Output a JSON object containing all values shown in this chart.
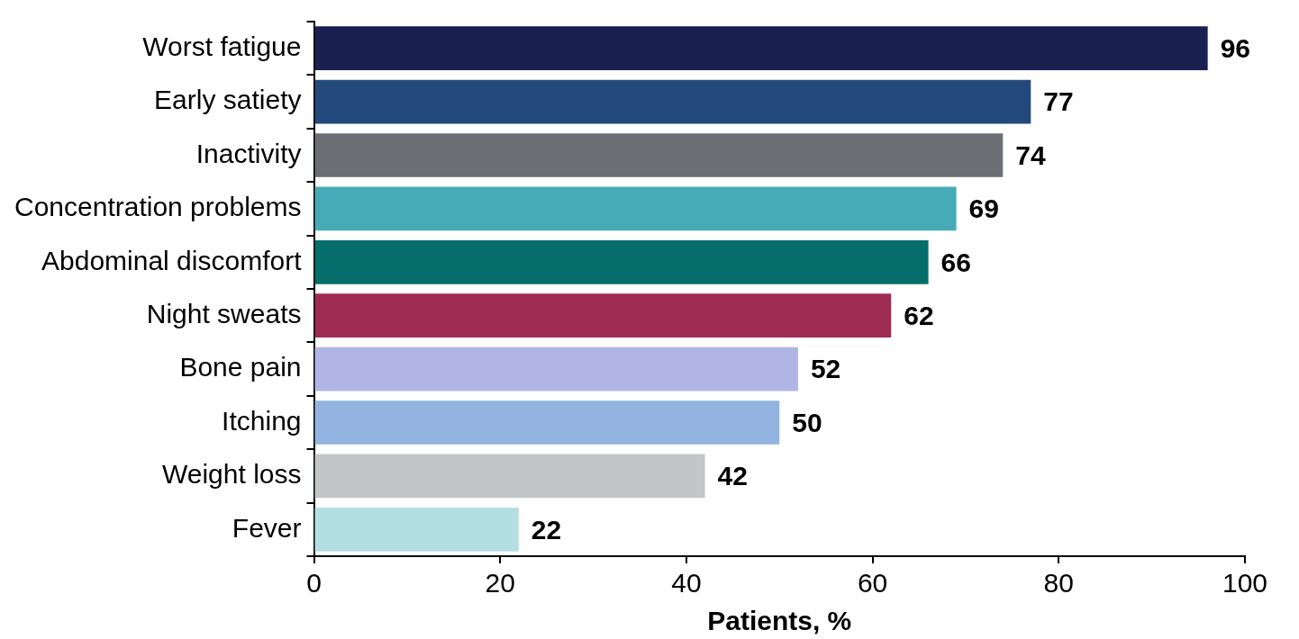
{
  "chart_data": {
    "type": "bar",
    "orientation": "horizontal",
    "xlabel": "Patients, %",
    "categories": [
      "Worst fatigue",
      "Early satiety",
      "Inactivity",
      "Concentration problems",
      "Abdominal discomfort",
      "Night sweats",
      "Bone pain",
      "Itching",
      "Weight loss",
      "Fever"
    ],
    "values": [
      96,
      77,
      74,
      69,
      66,
      62,
      52,
      50,
      42,
      22
    ],
    "colors": [
      "#1a2050",
      "#244a7c",
      "#6d6e73",
      "#47abb7",
      "#066e6a",
      "#9e2c53",
      "#b0b5e5",
      "#93b3e0",
      "#c4c5c7",
      "#b4dfe2"
    ],
    "xlim": [
      0,
      100
    ],
    "xticks": [
      0,
      20,
      40,
      60,
      80,
      100
    ],
    "grid": false,
    "legend": false,
    "data_labels": true
  }
}
